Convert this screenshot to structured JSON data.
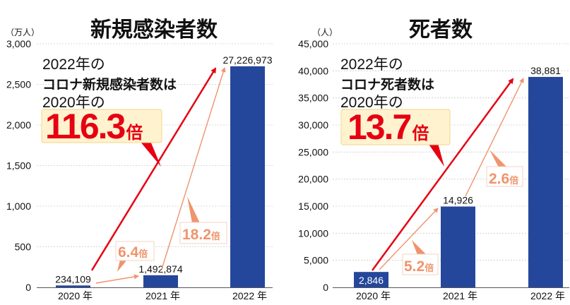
{
  "colors": {
    "bar": "#25479b",
    "red": "#e60012",
    "salmon": "#ef946c",
    "box_fill": "#fff3cf",
    "grid": "#cccccc"
  },
  "chart_data": [
    {
      "type": "bar",
      "title": "新規感染者数",
      "unit_label": "（万人）",
      "categories": [
        "2020 年",
        "2021 年",
        "2022 年"
      ],
      "values": [
        234109,
        1492874,
        27226973
      ],
      "value_labels": [
        "234,109",
        "1,492,874",
        "27,226,973"
      ],
      "ylim": [
        0,
        3000
      ],
      "yscale_divisor": 10000,
      "yticks": [
        0,
        500,
        1000,
        1500,
        2000,
        2500,
        3000
      ],
      "ytick_labels": [
        "0",
        "500",
        "1,000",
        "1,500",
        "2,000",
        "2,500",
        "3,000"
      ],
      "grid": true,
      "annotation": {
        "line1": "2022年の",
        "line2": "コロナ新規感染者数は",
        "line3": "2020年の",
        "ratio": "116.3",
        "unit": "倍"
      },
      "growth": [
        {
          "from": "2020 年",
          "to": "2021 年",
          "ratio": "6.4",
          "unit": "倍"
        },
        {
          "from": "2021 年",
          "to": "2022 年",
          "ratio": "18.2",
          "unit": "倍"
        }
      ]
    },
    {
      "type": "bar",
      "title": "死者数",
      "unit_label": "（人）",
      "categories": [
        "2020 年",
        "2021 年",
        "2022 年"
      ],
      "values": [
        2846,
        14926,
        38881
      ],
      "value_labels": [
        "2,846",
        "14,926",
        "38,881"
      ],
      "ylim": [
        0,
        45000
      ],
      "yscale_divisor": 1,
      "yticks": [
        0,
        5000,
        10000,
        15000,
        20000,
        25000,
        30000,
        35000,
        40000,
        45000
      ],
      "ytick_labels": [
        "0",
        "5,000",
        "10,000",
        "15,000",
        "20,000",
        "25,000",
        "30,000",
        "35,000",
        "40,000",
        "45,000"
      ],
      "grid": true,
      "annotation": {
        "line1": "2022年の",
        "line2": "コロナ死者数は",
        "line3": "2020年の",
        "ratio": "13.7",
        "unit": "倍"
      },
      "growth": [
        {
          "from": "2020 年",
          "to": "2021 年",
          "ratio": "5.2",
          "unit": "倍"
        },
        {
          "from": "2021 年",
          "to": "2022 年",
          "ratio": "2.6",
          "unit": "倍"
        }
      ]
    }
  ]
}
